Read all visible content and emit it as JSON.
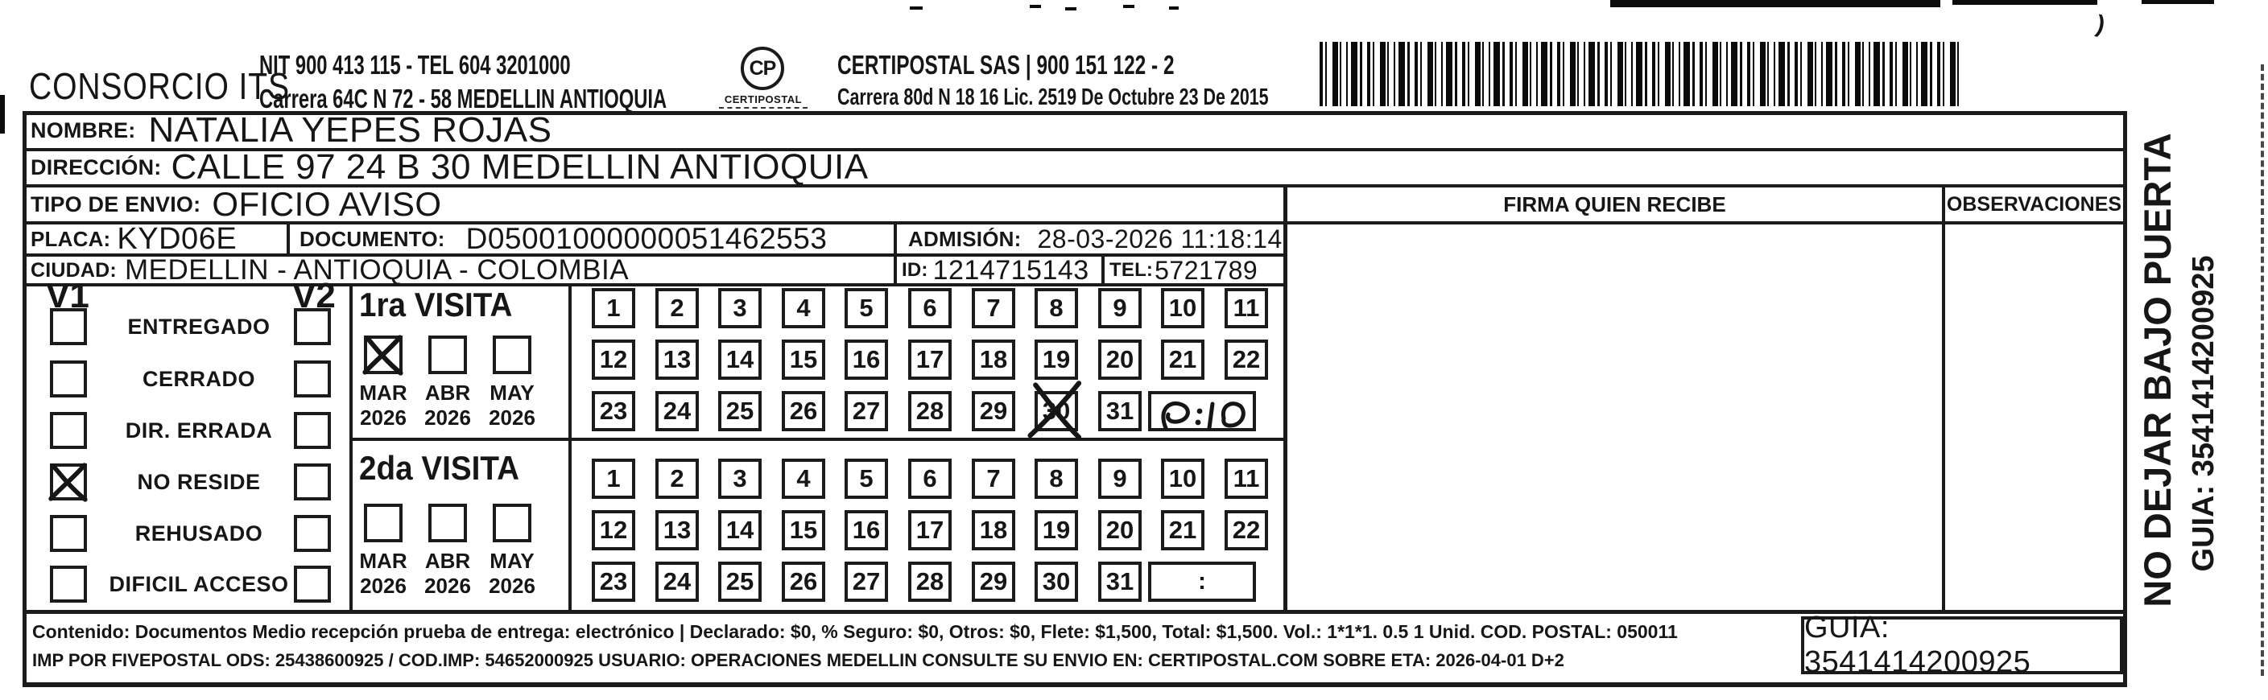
{
  "header": {
    "company": "CONSORCIO ITS",
    "company_nit": "NIT 900 413 115 - TEL 604 3201000",
    "company_address": "Carrera 64C N 72 - 58 MEDELLIN ANTIOQUIA",
    "logo_monogram": "CP",
    "logo_caption": "CERTIPOSTAL",
    "carrier_line1": "CERTIPOSTAL SAS | 900 151 122 - 2",
    "carrier_line2": "Carrera 80d N 18 16  Lic. 2519 De Octubre 23 De 2015"
  },
  "fields": {
    "nombre_label": "NOMBRE:",
    "nombre": "NATALIA YEPES ROJAS",
    "direccion_label": "DIRECCIÓN:",
    "direccion": "CALLE 97  24 B   30 MEDELLIN ANTIOQUIA",
    "tipo_label": "TIPO DE ENVIO:",
    "tipo": "OFICIO AVISO",
    "placa_label": "PLACA:",
    "placa": "KYD06E",
    "documento_label": "DOCUMENTO:",
    "documento": "D05001000000051462553",
    "admision_label": "ADMISIÓN:",
    "admision": "28-03-2026 11:18:14",
    "ciudad_label": "CIUDAD:",
    "ciudad": "MEDELLIN - ANTIOQUIA - COLOMBIA",
    "id_label": "ID:",
    "id": "1214715143",
    "tel_label": "TEL:",
    "tel": "5721789"
  },
  "right_panel": {
    "firma_header": "FIRMA QUIEN RECIBE",
    "observaciones_header": "OBSERVACIONES"
  },
  "status_panel": {
    "col1": "V1",
    "col2": "V2",
    "rows": [
      {
        "label": "ENTREGADO",
        "v1": false,
        "v2": false
      },
      {
        "label": "CERRADO",
        "v1": false,
        "v2": false
      },
      {
        "label": "DIR. ERRADA",
        "v1": false,
        "v2": false
      },
      {
        "label": "NO RESIDE",
        "v1": true,
        "v2": false
      },
      {
        "label": "REHUSADO",
        "v1": false,
        "v2": false
      },
      {
        "label": "DIFICIL ACCESO",
        "v1": false,
        "v2": false
      }
    ]
  },
  "day_rows": [
    [
      1,
      2,
      3,
      4,
      5,
      6,
      7,
      8,
      9,
      10,
      11
    ],
    [
      12,
      13,
      14,
      15,
      16,
      17,
      18,
      19,
      20,
      21,
      22
    ],
    [
      23,
      24,
      25,
      26,
      27,
      28,
      29,
      30,
      31
    ]
  ],
  "visits": [
    {
      "title": "1ra VISITA",
      "months": [
        {
          "m": "MAR",
          "y": "2026",
          "checked": true
        },
        {
          "m": "ABR",
          "y": "2026",
          "checked": false
        },
        {
          "m": "MAY",
          "y": "2026",
          "checked": false
        }
      ],
      "crossed_day": 30,
      "time_value": "7:10",
      "time_handwritten": true
    },
    {
      "title": "2da VISITA",
      "months": [
        {
          "m": "MAR",
          "y": "2026",
          "checked": false
        },
        {
          "m": "ABR",
          "y": "2026",
          "checked": false
        },
        {
          "m": "MAY",
          "y": "2026",
          "checked": false
        }
      ],
      "crossed_day": null,
      "time_value": ":",
      "time_handwritten": false
    }
  ],
  "side_note": {
    "line1": "NO DEJAR BAJO PUERTA",
    "line2": "GUIA: 3541414200925"
  },
  "footer": {
    "line1": "Contenido: Documentos Medio recepción prueba de entrega: electrónico | Declarado: $0, % Seguro: $0, Otros: $0, Flete: $1,500, Total: $1,500. Vol.: 1*1*1. 0.5  1 Unid. COD. POSTAL: 050011",
    "line2": "IMP POR FIVEPOSTAL ODS: 25438600925 / COD.IMP: 54652000925 USUARIO: OPERACIONES MEDELLIN CONSULTE SU ENVIO EN: CERTIPOSTAL.COM SOBRE ETA: 2026-04-01 D+2",
    "guia": "GUIA: 3541414200925"
  }
}
